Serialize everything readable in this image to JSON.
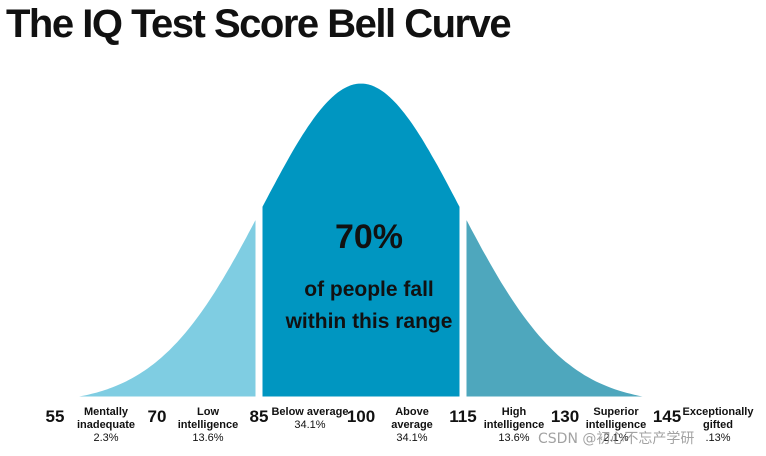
{
  "chart_data": {
    "type": "bell",
    "title": "The IQ Test Score Bell Curve",
    "mean": 100,
    "sd": 15,
    "xlim": [
      54,
      159
    ],
    "xticks": [
      55,
      70,
      85,
      100,
      115,
      130,
      145
    ],
    "bands": [
      {
        "from": 54,
        "to": 85,
        "color": "#7fcde2"
      },
      {
        "from": 85,
        "to": 115,
        "color": "#0096c1"
      },
      {
        "from": 115,
        "to": 159,
        "color": "#4ea7bd"
      }
    ],
    "annotations": [
      "70%",
      "of people fall",
      "within this range"
    ],
    "categories": [
      "Mentally inadequate",
      "Low intelligence",
      "Below average",
      "Above average",
      "High intelligence",
      "Superior intelligence",
      "Exceptionally gifted"
    ],
    "values": [
      2.3,
      13.6,
      34.1,
      34.1,
      13.6,
      2.1,
      0.13
    ],
    "value_labels": [
      "2.3%",
      "13.6%",
      "34.1%",
      "34.1%",
      "13.6%",
      "2.1%",
      ".13%"
    ],
    "watermark": "CSDN @初心不忘产学研"
  }
}
